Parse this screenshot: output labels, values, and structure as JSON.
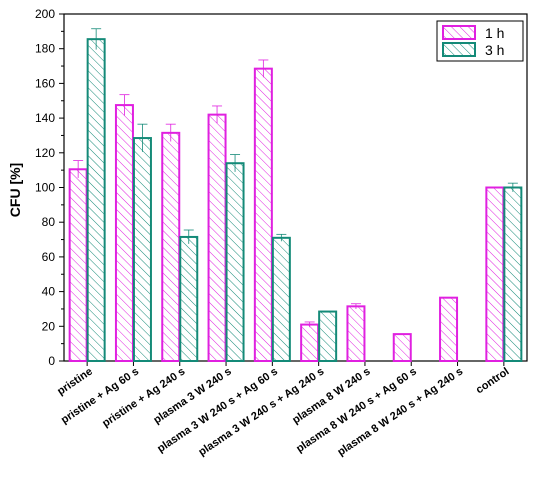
{
  "chart_data": {
    "type": "bar",
    "ylabel": "CFU [%]",
    "xlabel": "",
    "ylim": [
      0,
      200
    ],
    "yticks": [
      0,
      20,
      40,
      60,
      80,
      100,
      120,
      140,
      160,
      180,
      200
    ],
    "grid": false,
    "legend_position": "top-right",
    "categories": [
      "pristine",
      "pristine + Ag 60 s",
      "pristine + Ag 240 s",
      "plasma 3 W 240 s",
      "plasma 3 W 240 s + Ag 60 s",
      "plasma 3 W 240 s + Ag 240 s",
      "plasma 8 W 240 s",
      "plasma 8 W 240 s + Ag 60 s",
      "plasma 8 W 240 s  + Ag 240 s",
      "control"
    ],
    "series": [
      {
        "name": "1 h",
        "color": "#e020e0",
        "values": [
          110.5,
          147.5,
          131.5,
          142,
          168.5,
          21,
          31.5,
          15.5,
          36.5,
          100
        ],
        "errors": [
          5,
          6,
          5,
          5,
          5,
          1.5,
          1.5,
          null,
          null,
          0
        ]
      },
      {
        "name": "3 h",
        "color": "#148a78",
        "values": [
          185.5,
          128.5,
          71.5,
          114,
          71,
          28.5,
          null,
          null,
          null,
          100
        ],
        "errors": [
          6,
          8,
          4,
          5,
          2,
          0,
          null,
          null,
          null,
          2.5
        ]
      }
    ]
  }
}
